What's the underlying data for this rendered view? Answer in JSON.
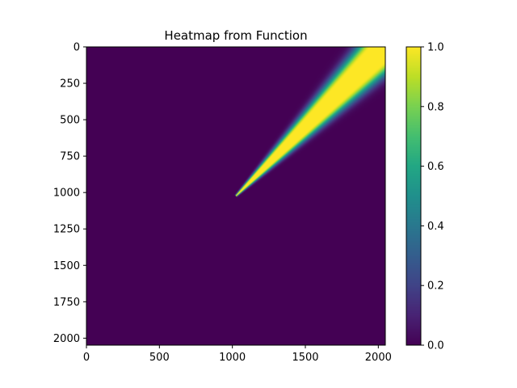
{
  "chart_data": [
    {
      "type": "heatmap",
      "title": "Heatmap from Function",
      "xlabel": "",
      "ylabel": "",
      "xlim": [
        0,
        2048
      ],
      "ylim": [
        2048,
        0
      ],
      "x_ticks": [
        0,
        500,
        1000,
        1500,
        2000
      ],
      "y_ticks": [
        0,
        250,
        500,
        750,
        1000,
        1250,
        1500,
        1750,
        2000
      ],
      "x_tick_labels": [
        "0",
        "500",
        "1000",
        "1500",
        "2000"
      ],
      "y_tick_labels": [
        "0",
        "250",
        "500",
        "750",
        "1000",
        "1250",
        "1500",
        "1750",
        "2000"
      ],
      "origin": "upper",
      "grid": false,
      "colormap": "viridis",
      "value_range": [
        0.0,
        1.0
      ],
      "background_value": 0.0,
      "bright_wedge": {
        "apex": [
          1024,
          1024
        ],
        "far_end": [
          2048,
          0
        ],
        "peak_value": 1.0
      }
    },
    {
      "type": "colorbar",
      "colormap": "viridis",
      "range": [
        0.0,
        1.0
      ],
      "ticks": [
        0.0,
        0.2,
        0.4,
        0.6,
        0.8,
        1.0
      ],
      "tick_labels": [
        "0.0",
        "0.2",
        "0.4",
        "0.6",
        "0.8",
        "1.0"
      ],
      "placement": "right"
    }
  ]
}
